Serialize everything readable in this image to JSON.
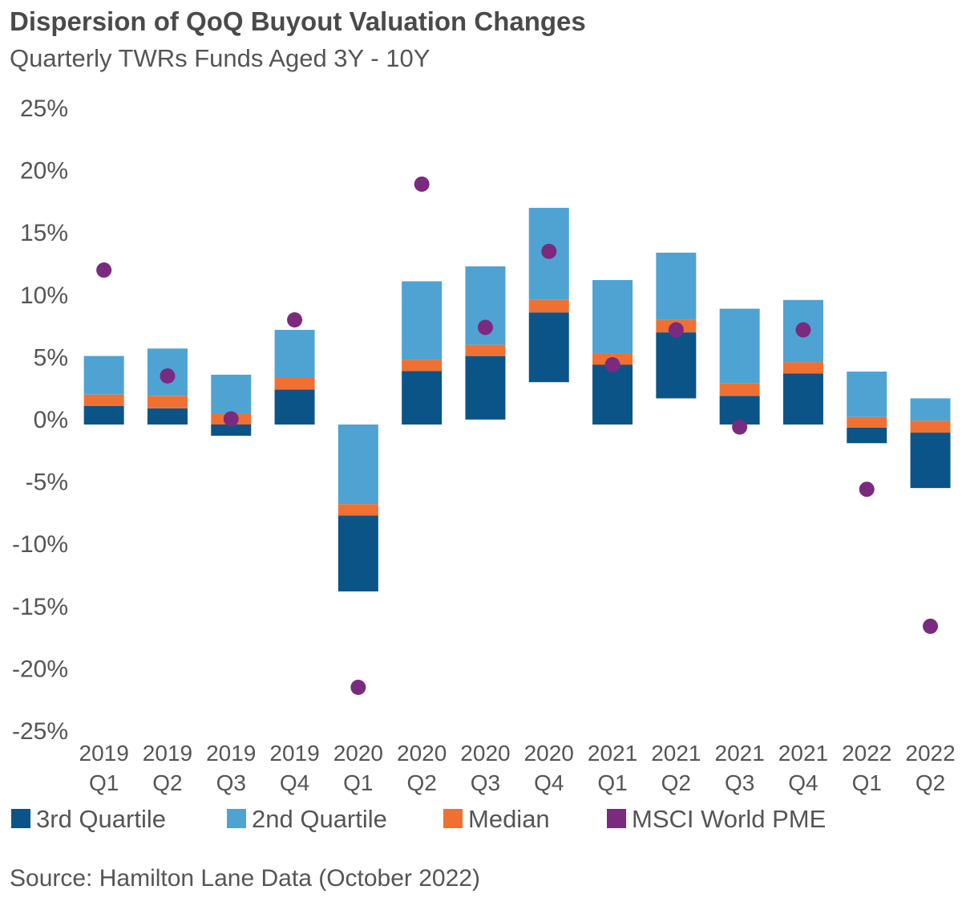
{
  "chart_data": {
    "type": "bar",
    "title": "Dispersion of QoQ Buyout Valuation Changes",
    "subtitle": "Quarterly TWRs Funds Aged 3Y - 10Y",
    "xlabel": "",
    "ylabel": "",
    "ylim": [
      -25,
      25
    ],
    "y_ticks": [
      "25%",
      "20%",
      "15%",
      "10%",
      "5%",
      "0%",
      "-5%",
      "-10%",
      "-15%",
      "-20%",
      "-25%"
    ],
    "y_tick_values": [
      25,
      20,
      15,
      10,
      5,
      0,
      -5,
      -10,
      -15,
      -20,
      -25
    ],
    "grid": false,
    "legend_position": "bottom",
    "categories": [
      {
        "year": "2019",
        "quarter": "Q1"
      },
      {
        "year": "2019",
        "quarter": "Q2"
      },
      {
        "year": "2019",
        "quarter": "Q3"
      },
      {
        "year": "2019",
        "quarter": "Q4"
      },
      {
        "year": "2020",
        "quarter": "Q1"
      },
      {
        "year": "2020",
        "quarter": "Q2"
      },
      {
        "year": "2020",
        "quarter": "Q3"
      },
      {
        "year": "2020",
        "quarter": "Q4"
      },
      {
        "year": "2021",
        "quarter": "Q1"
      },
      {
        "year": "2021",
        "quarter": "Q2"
      },
      {
        "year": "2021",
        "quarter": "Q3"
      },
      {
        "year": "2021",
        "quarter": "Q4"
      },
      {
        "year": "2022",
        "quarter": "Q1"
      },
      {
        "year": "2022",
        "quarter": "Q2"
      }
    ],
    "series": [
      {
        "name": "3rd Quartile",
        "color": "#0b5487",
        "kind": "floating-bar",
        "ranges": [
          [
            0,
            1.5
          ],
          [
            0,
            1.3
          ],
          [
            -0.9,
            0
          ],
          [
            0,
            2.8
          ],
          [
            -13.4,
            -7.3
          ],
          [
            0,
            4.3
          ],
          [
            0.4,
            5.5
          ],
          [
            3.4,
            9.0
          ],
          [
            0,
            4.8
          ],
          [
            2.1,
            7.4
          ],
          [
            0,
            2.3
          ],
          [
            0,
            4.1
          ],
          [
            -1.5,
            -0.25
          ],
          [
            -5.1,
            -0.65
          ]
        ]
      },
      {
        "name": "2nd Quartile",
        "color": "#4fa3d3",
        "kind": "floating-bar",
        "ranges": [
          [
            2.4,
            5.5
          ],
          [
            2.3,
            6.1
          ],
          [
            0.9,
            4.0
          ],
          [
            3.8,
            7.6
          ],
          [
            -6.4,
            0
          ],
          [
            5.2,
            11.5
          ],
          [
            6.4,
            12.7
          ],
          [
            10.0,
            17.4
          ],
          [
            5.7,
            11.6
          ],
          [
            8.4,
            13.8
          ],
          [
            3.3,
            9.3
          ],
          [
            5.0,
            10.0
          ],
          [
            0.6,
            4.25
          ],
          [
            0.3,
            2.1
          ]
        ]
      },
      {
        "name": "Median",
        "color": "#f07032",
        "kind": "floating-bar",
        "ranges": [
          [
            1.5,
            2.4
          ],
          [
            1.3,
            2.3
          ],
          [
            0,
            0.9
          ],
          [
            2.8,
            3.8
          ],
          [
            -7.3,
            -6.4
          ],
          [
            4.3,
            5.2
          ],
          [
            5.5,
            6.4
          ],
          [
            9.0,
            10.0
          ],
          [
            4.8,
            5.7
          ],
          [
            7.4,
            8.4
          ],
          [
            2.3,
            3.3
          ],
          [
            4.1,
            5.0
          ],
          [
            -0.25,
            0.6
          ],
          [
            -0.65,
            0.3
          ]
        ]
      },
      {
        "name": "MSCI World PME",
        "color": "#7b2a7f",
        "kind": "scatter",
        "values": [
          12.4,
          3.9,
          0.45,
          8.4,
          -21.1,
          19.3,
          7.8,
          13.9,
          4.8,
          7.6,
          -0.2,
          7.6,
          -5.2,
          -16.2
        ]
      }
    ]
  },
  "source": "Source: Hamilton Lane Data (October 2022)"
}
